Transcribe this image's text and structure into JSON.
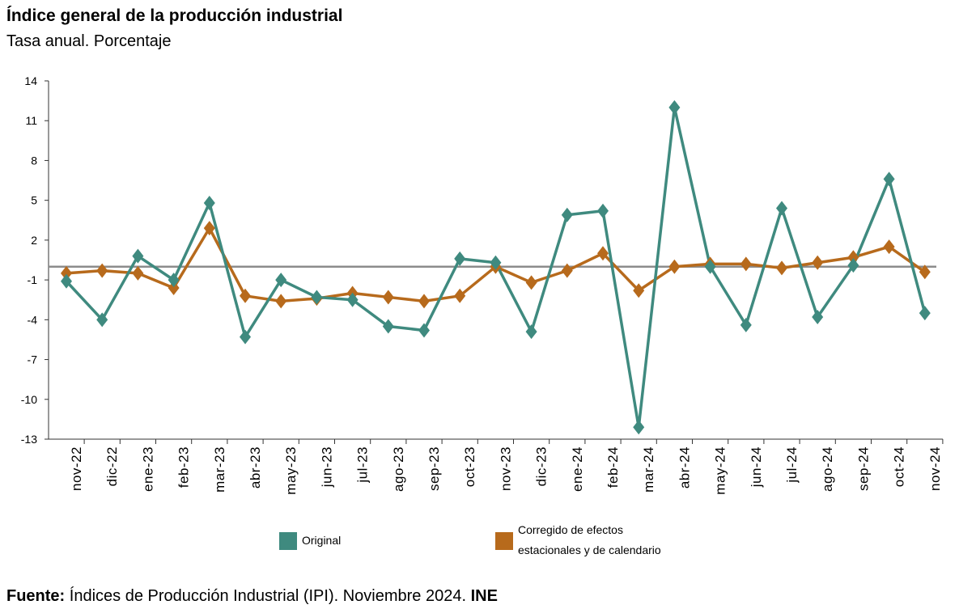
{
  "header": {
    "title": "Índice general de la producción industrial",
    "subtitle": "Tasa anual. Porcentaje"
  },
  "footer": {
    "source_label": "Fuente:",
    "source_text": "Índices de Producción Industrial (IPI). Noviembre 2024.",
    "source_org": "INE"
  },
  "chart_data": {
    "type": "line",
    "title": "Índice general de la producción industrial",
    "subtitle": "Tasa anual. Porcentaje",
    "xlabel": "",
    "ylabel": "",
    "ylim": [
      -13,
      14
    ],
    "yticks": [
      14,
      11,
      8,
      5,
      2,
      -1,
      -4,
      -7,
      -10,
      -13
    ],
    "reference_line": 0,
    "categories": [
      "nov-22",
      "dic-22",
      "ene-23",
      "feb-23",
      "mar-23",
      "abr-23",
      "may-23",
      "jun-23",
      "jul-23",
      "ago-23",
      "sep-23",
      "oct-23",
      "nov-23",
      "dic-23",
      "ene-24",
      "feb-24",
      "mar-24",
      "abr-24",
      "may-24",
      "jun-24",
      "jul-24",
      "ago-24",
      "sep-24",
      "oct-24",
      "nov-24"
    ],
    "series": [
      {
        "name": "Original",
        "color": "#3f8a7f",
        "marker": "diamond",
        "values": [
          -1.1,
          -4.0,
          0.8,
          -1.0,
          4.8,
          -5.3,
          -1.0,
          -2.3,
          -2.5,
          -4.5,
          -4.8,
          0.6,
          0.3,
          -4.9,
          3.9,
          4.2,
          -12.1,
          12.0,
          0.0,
          -4.4,
          4.4,
          -3.8,
          0.1,
          6.6,
          -3.5
        ]
      },
      {
        "name": "Corregido de efectos estacionales y de calendario",
        "color": "#b76a1c",
        "marker": "diamond",
        "values": [
          -0.5,
          -0.3,
          -0.5,
          -1.6,
          2.9,
          -2.2,
          -2.6,
          -2.4,
          -2.0,
          -2.3,
          -2.6,
          -2.2,
          0.0,
          -1.2,
          -0.3,
          1.0,
          -1.8,
          0.0,
          0.2,
          0.2,
          -0.1,
          0.3,
          0.7,
          1.5,
          -0.4
        ]
      }
    ],
    "legend_position": "bottom"
  }
}
